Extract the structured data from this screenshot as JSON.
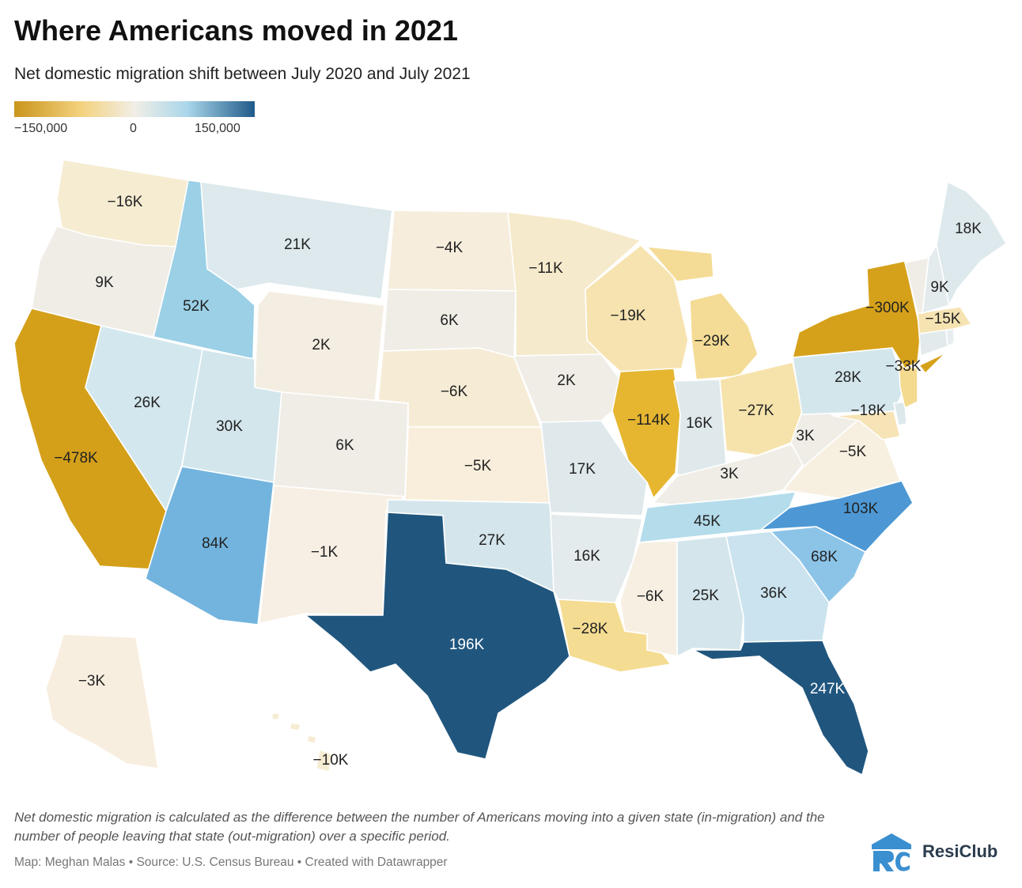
{
  "title": "Where Americans moved in 2021",
  "subtitle": "Net domestic migration shift between July 2020 and July 2021",
  "legend": {
    "min_label": "−150,000",
    "mid_label": "0",
    "max_label": "150,000",
    "colors": [
      "#c9951b",
      "#f4d27f",
      "#f1eee6",
      "#a9d6ea",
      "#1f5a89"
    ]
  },
  "states": [
    {
      "code": "WA",
      "label": "−16K"
    },
    {
      "code": "OR",
      "label": "9K"
    },
    {
      "code": "CA",
      "label": "−478K"
    },
    {
      "code": "ID",
      "label": "52K"
    },
    {
      "code": "NV",
      "label": "26K"
    },
    {
      "code": "MT",
      "label": "21K"
    },
    {
      "code": "WY",
      "label": "2K"
    },
    {
      "code": "UT",
      "label": "30K"
    },
    {
      "code": "AZ",
      "label": "84K"
    },
    {
      "code": "CO",
      "label": "6K"
    },
    {
      "code": "NM",
      "label": "−1K"
    },
    {
      "code": "ND",
      "label": "−4K"
    },
    {
      "code": "SD",
      "label": "6K"
    },
    {
      "code": "NE",
      "label": "−6K"
    },
    {
      "code": "KS",
      "label": "−5K"
    },
    {
      "code": "OK",
      "label": "27K"
    },
    {
      "code": "TX",
      "label": "196K"
    },
    {
      "code": "MN",
      "label": "−11K"
    },
    {
      "code": "IA",
      "label": "2K"
    },
    {
      "code": "MO",
      "label": "17K"
    },
    {
      "code": "AR",
      "label": "16K"
    },
    {
      "code": "LA",
      "label": "−28K"
    },
    {
      "code": "WI",
      "label": "−19K"
    },
    {
      "code": "IL",
      "label": "−114K"
    },
    {
      "code": "MI",
      "label": "−29K"
    },
    {
      "code": "IN",
      "label": "16K"
    },
    {
      "code": "OH",
      "label": "−27K"
    },
    {
      "code": "KY",
      "label": "3K"
    },
    {
      "code": "TN",
      "label": "45K"
    },
    {
      "code": "MS",
      "label": "−6K"
    },
    {
      "code": "AL",
      "label": "25K"
    },
    {
      "code": "GA",
      "label": "36K"
    },
    {
      "code": "FL",
      "label": "247K"
    },
    {
      "code": "SC",
      "label": "68K"
    },
    {
      "code": "NC",
      "label": "103K"
    },
    {
      "code": "VA",
      "label": "−5K"
    },
    {
      "code": "WV",
      "label": "3K"
    },
    {
      "code": "PA",
      "label": "28K"
    },
    {
      "code": "NY",
      "label": "−300K"
    },
    {
      "code": "NJ",
      "label": "−33K"
    },
    {
      "code": "MD",
      "label": "−18K"
    },
    {
      "code": "NH",
      "label": "9K"
    },
    {
      "code": "MA",
      "label": "−15K"
    },
    {
      "code": "ME",
      "label": "18K"
    },
    {
      "code": "AK",
      "label": "−3K"
    },
    {
      "code": "HI",
      "label": "−10K"
    }
  ],
  "footnote": "Net domestic migration is calculated as the difference between the number of Americans moving into a given state (in-migration) and the number of people leaving that state (out-migration) over a specific period.",
  "credits": "Map: Meghan Malas • Source: U.S. Census Bureau • Created with Datawrapper",
  "brand": {
    "name": "ResiClub",
    "color": "#3a8fd0"
  }
}
